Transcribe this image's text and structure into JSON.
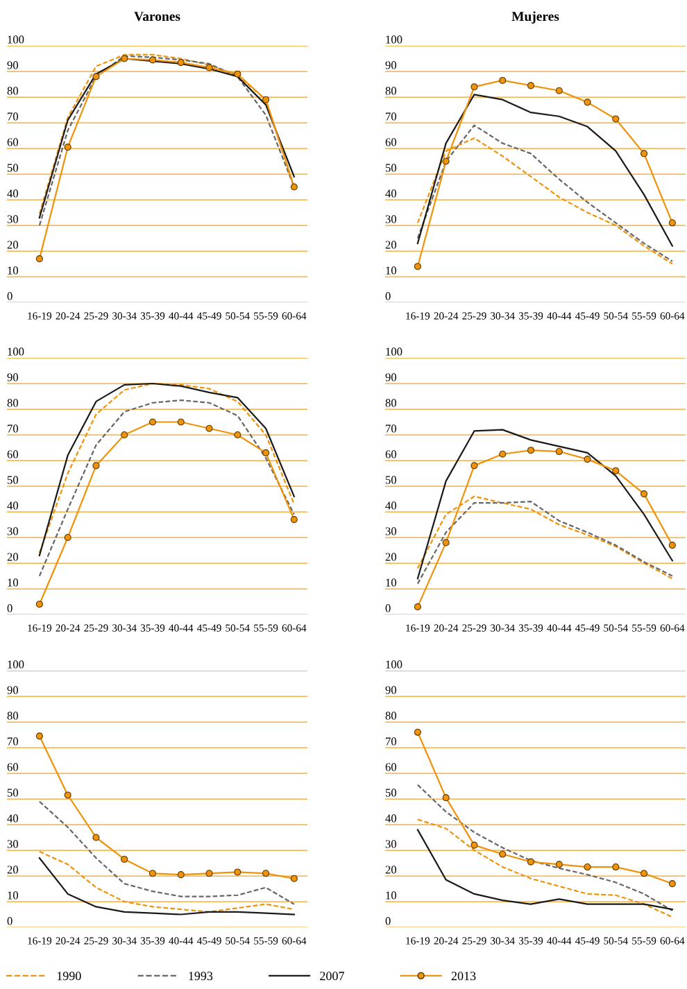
{
  "chart_data": [
    {
      "type": "line",
      "title": "Varones",
      "legend": "bottom",
      "categories": [
        "16-19",
        "20-24",
        "25-29",
        "30-34",
        "35-39",
        "40-44",
        "45-49",
        "50-54",
        "55-59",
        "60-64"
      ],
      "ylim": [
        0,
        100
      ],
      "yticks": [
        0,
        10,
        20,
        30,
        40,
        50,
        60,
        70,
        80,
        90,
        100
      ],
      "grid": "y",
      "series": [
        {
          "name": "1990",
          "color": "#f0920a",
          "line_style": "dashed",
          "marker": "none",
          "values": [
            34.5,
            72,
            92,
            96.5,
            96.5,
            95,
            92.5,
            88.5,
            79,
            45
          ]
        },
        {
          "name": "1993",
          "color": "#666666",
          "line_style": "dashed",
          "marker": "none",
          "values": [
            30,
            67,
            88,
            96,
            95.5,
            94.5,
            93,
            88,
            73,
            45
          ]
        },
        {
          "name": "2007",
          "color": "#1a1a1a",
          "line_style": "solid",
          "marker": "none",
          "values": [
            33,
            71,
            89,
            95,
            94,
            93,
            91,
            88,
            77,
            49
          ]
        },
        {
          "name": "2013",
          "color": "#f0920a",
          "line_style": "solid",
          "marker": "circle",
          "values": [
            17,
            60.5,
            88,
            95,
            94.5,
            93.5,
            91.5,
            89,
            79,
            45
          ]
        }
      ]
    },
    {
      "type": "line",
      "title": "Mujeres",
      "categories": [
        "16-19",
        "20-24",
        "25-29",
        "30-34",
        "35-39",
        "40-44",
        "45-49",
        "50-54",
        "55-59",
        "60-64"
      ],
      "ylim": [
        0,
        100
      ],
      "yticks": [
        0,
        10,
        20,
        30,
        40,
        50,
        60,
        70,
        80,
        90,
        100
      ],
      "grid": "y",
      "series": [
        {
          "name": "1990",
          "color": "#f0920a",
          "line_style": "dashed",
          "marker": "none",
          "values": [
            31,
            59,
            64,
            57,
            49,
            41,
            35,
            30,
            22,
            15
          ]
        },
        {
          "name": "1993",
          "color": "#666666",
          "line_style": "dashed",
          "marker": "none",
          "values": [
            25,
            55,
            69,
            62,
            58,
            48,
            39,
            31,
            23,
            16
          ]
        },
        {
          "name": "2007",
          "color": "#1a1a1a",
          "line_style": "solid",
          "marker": "none",
          "values": [
            23,
            62,
            81,
            79,
            74,
            72.5,
            68.5,
            59,
            42,
            22
          ]
        },
        {
          "name": "2013",
          "color": "#f0920a",
          "line_style": "solid",
          "marker": "circle",
          "values": [
            14,
            55,
            84,
            86.5,
            84.5,
            82.5,
            78,
            71.5,
            58,
            31
          ]
        }
      ]
    },
    {
      "type": "line",
      "categories": [
        "16-19",
        "20-24",
        "25-29",
        "30-34",
        "35-39",
        "40-44",
        "45-49",
        "50-54",
        "55-59",
        "60-64"
      ],
      "ylim": [
        0,
        100
      ],
      "yticks": [
        0,
        10,
        20,
        30,
        40,
        50,
        60,
        70,
        80,
        90,
        100
      ],
      "grid": "y",
      "series": [
        {
          "name": "1990",
          "color": "#f0920a",
          "line_style": "dashed",
          "marker": "none",
          "values": [
            24,
            55,
            78,
            87.5,
            90,
            89.5,
            88,
            83,
            70,
            43
          ]
        },
        {
          "name": "1993",
          "color": "#666666",
          "line_style": "dashed",
          "marker": "none",
          "values": [
            15,
            41,
            66,
            79,
            82.5,
            83.5,
            82.5,
            77.5,
            61,
            39
          ]
        },
        {
          "name": "2007",
          "color": "#1a1a1a",
          "line_style": "solid",
          "marker": "none",
          "values": [
            23,
            62,
            83,
            89.5,
            90,
            89,
            86.5,
            84.5,
            72.5,
            46
          ]
        },
        {
          "name": "2013",
          "color": "#f0920a",
          "line_style": "solid",
          "marker": "circle",
          "values": [
            4,
            30,
            58,
            70,
            75,
            75,
            72.5,
            70,
            63,
            37
          ]
        }
      ]
    },
    {
      "type": "line",
      "categories": [
        "16-19",
        "20-24",
        "25-29",
        "30-34",
        "35-39",
        "40-44",
        "45-49",
        "50-54",
        "55-59",
        "60-64"
      ],
      "ylim": [
        0,
        100
      ],
      "yticks": [
        0,
        10,
        20,
        30,
        40,
        50,
        60,
        70,
        80,
        90,
        100
      ],
      "grid": "y",
      "series": [
        {
          "name": "1990",
          "color": "#f0920a",
          "line_style": "dashed",
          "marker": "none",
          "values": [
            18,
            39,
            46,
            43.5,
            41,
            35,
            31,
            26.5,
            20,
            14
          ]
        },
        {
          "name": "1993",
          "color": "#666666",
          "line_style": "dashed",
          "marker": "none",
          "values": [
            12,
            32,
            43.5,
            43.5,
            44,
            36.5,
            32,
            27,
            20.5,
            15
          ]
        },
        {
          "name": "2007",
          "color": "#1a1a1a",
          "line_style": "solid",
          "marker": "none",
          "values": [
            14,
            52,
            71.5,
            72,
            68,
            65.5,
            63,
            54,
            39,
            21
          ]
        },
        {
          "name": "2013",
          "color": "#f0920a",
          "line_style": "solid",
          "marker": "circle",
          "values": [
            3,
            28,
            58,
            62.5,
            64,
            63.5,
            60.5,
            56,
            47,
            27
          ]
        }
      ]
    },
    {
      "type": "line",
      "categories": [
        "16-19",
        "20-24",
        "25-29",
        "30-34",
        "35-39",
        "40-44",
        "45-49",
        "50-54",
        "55-59",
        "60-64"
      ],
      "ylim": [
        0,
        100
      ],
      "yticks": [
        0,
        10,
        20,
        30,
        40,
        50,
        60,
        70,
        80,
        90,
        100
      ],
      "grid": "y",
      "series": [
        {
          "name": "1990",
          "color": "#f0920a",
          "line_style": "dashed",
          "marker": "none",
          "values": [
            29.5,
            24.5,
            15.5,
            10,
            8,
            7,
            6,
            7.5,
            9,
            7
          ]
        },
        {
          "name": "1993",
          "color": "#666666",
          "line_style": "dashed",
          "marker": "none",
          "values": [
            49,
            39,
            27,
            17,
            14,
            12,
            12,
            12.5,
            15.5,
            9
          ]
        },
        {
          "name": "2007",
          "color": "#1a1a1a",
          "line_style": "solid",
          "marker": "none",
          "values": [
            27,
            13,
            8,
            6,
            5.5,
            5,
            6,
            6,
            5.5,
            5
          ]
        },
        {
          "name": "2013",
          "color": "#f0920a",
          "line_style": "solid",
          "marker": "circle",
          "values": [
            74.5,
            51.5,
            35,
            26.5,
            21,
            20.5,
            21,
            21.5,
            21,
            19
          ]
        }
      ]
    },
    {
      "type": "line",
      "categories": [
        "16-19",
        "20-24",
        "25-29",
        "30-34",
        "35-39",
        "40-44",
        "45-49",
        "50-54",
        "55-59",
        "60-64"
      ],
      "ylim": [
        0,
        100
      ],
      "yticks": [
        0,
        10,
        20,
        30,
        40,
        50,
        60,
        70,
        80,
        90,
        100
      ],
      "grid": "y",
      "series": [
        {
          "name": "1990",
          "color": "#f0920a",
          "line_style": "dashed",
          "marker": "none",
          "values": [
            42,
            38.5,
            30,
            23.5,
            19,
            16,
            13,
            12.5,
            9,
            4
          ]
        },
        {
          "name": "1993",
          "color": "#666666",
          "line_style": "dashed",
          "marker": "none",
          "values": [
            55.5,
            45,
            37,
            31,
            26,
            23,
            20.5,
            17.5,
            13,
            6.5
          ]
        },
        {
          "name": "2007",
          "color": "#1a1a1a",
          "line_style": "solid",
          "marker": "none",
          "values": [
            38,
            18.5,
            13,
            10.5,
            9,
            11,
            9,
            9,
            9,
            7
          ]
        },
        {
          "name": "2013",
          "color": "#f0920a",
          "line_style": "solid",
          "marker": "circle",
          "values": [
            76,
            50.5,
            32,
            28.5,
            25.5,
            24.5,
            23.5,
            23.5,
            21,
            17
          ]
        }
      ]
    }
  ]
}
